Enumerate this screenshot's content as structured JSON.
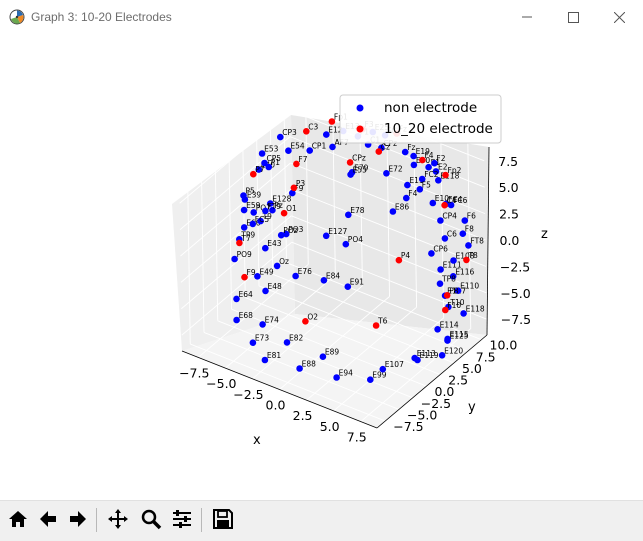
{
  "window": {
    "title": "Graph 3: 10-20 Electrodes",
    "icon": "matplotlib-figure-icon",
    "controls": [
      "minimize-icon",
      "maximize-icon",
      "close-icon"
    ]
  },
  "toolbar": {
    "buttons": [
      {
        "name": "home-button",
        "icon": "home-icon"
      },
      {
        "name": "back-button",
        "icon": "arrow-left-icon"
      },
      {
        "name": "forward-button",
        "icon": "arrow-right-icon"
      },
      {
        "name": "pan-button",
        "icon": "move-arrows-icon"
      },
      {
        "name": "zoom-button",
        "icon": "magnifier-icon"
      },
      {
        "name": "configure-button",
        "icon": "sliders-icon"
      },
      {
        "name": "save-button",
        "icon": "floppy-disk-icon"
      }
    ]
  },
  "chart_data": {
    "type": "scatter",
    "projection": "3d",
    "xlabel": "x",
    "ylabel": "y",
    "zlabel": "z",
    "xticks": [
      "−7.5",
      "−5.0",
      "−2.5",
      "0.0",
      "2.5",
      "5.0",
      "7.5"
    ],
    "yticks": [
      "−7.5",
      "−5.0",
      "−2.5",
      "0.0",
      "2.5",
      "5.0",
      "7.5",
      "10.0"
    ],
    "zticks": [
      "−7.5",
      "−5.0",
      "−2.5",
      "0.0",
      "2.5",
      "5.0",
      "7.5"
    ],
    "xlim": [
      -9,
      9
    ],
    "ylim": [
      -9,
      11
    ],
    "zlim": [
      -9,
      9
    ],
    "grid": true,
    "legend_position": "upper-right",
    "series": [
      {
        "name": "non electrode",
        "color": "#0000ff",
        "points": [
          {
            "label": "E54",
            "x": -4,
            "y": 1,
            "z": 7.6
          },
          {
            "label": "E53",
            "x": -6.4,
            "y": 0.9,
            "z": 6.4
          },
          {
            "label": "E40",
            "x": -7.4,
            "y": 2.2,
            "z": 3.9
          },
          {
            "label": "E39",
            "x": -7.8,
            "y": 0.4,
            "z": 1.7
          },
          {
            "label": "E66",
            "x": -7.6,
            "y": -0.2,
            "z": -0.6
          },
          {
            "label": "E59",
            "x": -8.1,
            "y": 0.8,
            "z": 0.4
          },
          {
            "label": "E49",
            "x": -5.2,
            "y": -2.6,
            "z": -3.2
          },
          {
            "label": "E43",
            "x": -5.2,
            "y": -1.1,
            "z": -1.2
          },
          {
            "label": "E48",
            "x": -4,
            "y": -3.5,
            "z": -3.7
          },
          {
            "label": "E64",
            "x": -6.5,
            "y": -3.9,
            "z": -5.3
          },
          {
            "label": "E68",
            "x": -5.8,
            "y": -5.3,
            "z": -6.4
          },
          {
            "label": "E73",
            "x": -3.8,
            "y": -6.3,
            "z": -7.3
          },
          {
            "label": "E74",
            "x": -3.6,
            "y": -4.9,
            "z": -6.1
          },
          {
            "label": "E81",
            "x": -2.4,
            "y": -6.9,
            "z": -8.1
          },
          {
            "label": "E82",
            "x": -1.2,
            "y": -5.2,
            "z": -6.7
          },
          {
            "label": "E88",
            "x": 0.5,
            "y": -6.3,
            "z": -8
          },
          {
            "label": "E89",
            "x": 1.8,
            "y": -4.6,
            "z": -7.1
          },
          {
            "label": "E94",
            "x": 3.1,
            "y": -4.7,
            "z": -8.5
          },
          {
            "label": "E99",
            "x": 5.7,
            "y": -3.7,
            "z": -8.1
          },
          {
            "label": "E107",
            "x": 6.1,
            "y": -2.2,
            "z": -7.6
          },
          {
            "label": "E113",
            "x": 8,
            "y": -0.1,
            "z": -6.7
          },
          {
            "label": "E119",
            "x": 8,
            "y": 0.4,
            "z": -7.1
          },
          {
            "label": "E120",
            "x": 9.2,
            "y": 2.5,
            "z": -7.1
          },
          {
            "label": "E125",
            "x": 9,
            "y": 3.9,
            "z": -6.4
          },
          {
            "label": "E115",
            "x": 8.8,
            "y": 4.3,
            "z": -6.5
          },
          {
            "label": "E114",
            "x": 8.1,
            "y": 3.9,
            "z": -5.7
          },
          {
            "label": "E118",
            "x": 9.5,
            "y": 5.9,
            "z": -4.5
          },
          {
            "label": "E117",
            "x": 7.5,
            "y": 6.5,
            "z": -3.9
          },
          {
            "label": "E110",
            "x": 8.5,
            "y": 6.9,
            "z": -3.2
          },
          {
            "label": "E111",
            "x": 6.7,
            "y": 7.3,
            "z": -2.1
          },
          {
            "label": "E108",
            "x": 7.4,
            "y": 8.3,
            "z": -1.4
          },
          {
            "label": "E116",
            "x": 7.6,
            "y": 7.8,
            "z": -2.6
          },
          {
            "label": "E118a",
            "x": 6.2,
            "y": 8.1,
            "z": 5.8
          },
          {
            "label": "E86",
            "x": 3.6,
            "y": 4.9,
            "z": 3.2
          },
          {
            "label": "E78",
            "x": 0.8,
            "y": 2.3,
            "z": 2.9
          },
          {
            "label": "E79",
            "x": 0.9,
            "y": 2.9,
            "z": 6.7
          },
          {
            "label": "E72",
            "x": 2.9,
            "y": 5.2,
            "z": 6.4
          },
          {
            "label": "E84",
            "x": 0.4,
            "y": -1.5,
            "z": -1.8
          },
          {
            "label": "E91",
            "x": 2.3,
            "y": -0.9,
            "z": -1.9
          },
          {
            "label": "E76",
            "x": -1.7,
            "y": -2.5,
            "z": -1.8
          },
          {
            "label": "E128",
            "x": -5.5,
            "y": 0.5,
            "z": 2.2
          },
          {
            "label": "E127",
            "x": -0.3,
            "y": 0.4,
            "z": 1.3
          },
          {
            "label": "E55",
            "x": 0.5,
            "y": 3.4,
            "z": 6.1
          },
          {
            "label": "E13",
            "x": -0.9,
            "y": 4.9,
            "z": 9
          },
          {
            "label": "E12",
            "x": -1.7,
            "y": 3.4,
            "z": 9
          },
          {
            "label": "E1",
            "x": 4.7,
            "y": 9.3,
            "z": 5.9
          },
          {
            "label": "E2",
            "x": 5.8,
            "y": 8.5,
            "z": 6.3
          },
          {
            "label": "E25",
            "x": 0.4,
            "y": 7.7,
            "z": 8.2
          },
          {
            "label": "E30",
            "x": 3.6,
            "y": 8.8,
            "z": 5.9
          },
          {
            "label": "E19",
            "x": 4.2,
            "y": 7.6,
            "z": 7.5
          },
          {
            "label": "E11",
            "x": 3.9,
            "y": 7,
            "z": 4.9
          },
          {
            "label": "E10",
            "x": 5.4,
            "y": 8.6,
            "z": 3.1
          },
          {
            "label": "PO3",
            "x": -3.5,
            "y": -0.6,
            "z": 0.6
          },
          {
            "label": "PO4",
            "x": 1.4,
            "y": 0.6,
            "z": 1.1
          },
          {
            "label": "Pz",
            "x": -4.8,
            "y": -0.5,
            "z": 2.3
          },
          {
            "label": "POz",
            "x": -3.5,
            "y": -1.5,
            "z": 0.9
          },
          {
            "label": "CP5",
            "x": -6.5,
            "y": 1.5,
            "z": 5.2
          },
          {
            "label": "CP6",
            "x": 6.6,
            "y": 5.9,
            "z": 0
          },
          {
            "label": "CP4",
            "x": 6.7,
            "y": 7.4,
            "z": 2.5
          },
          {
            "label": "FC4",
            "x": 7.1,
            "y": 7.7,
            "z": 4.1
          },
          {
            "label": "FC6",
            "x": 7.1,
            "y": 8.6,
            "z": 3.6
          },
          {
            "label": "F6",
            "x": 8.4,
            "y": 8.5,
            "z": 2.7
          },
          {
            "label": "F8",
            "x": 8.3,
            "y": 8.3,
            "z": 1.5
          },
          {
            "label": "FT8",
            "x": 8.8,
            "y": 8.3,
            "z": 0.6
          },
          {
            "label": "C6",
            "x": 7.2,
            "y": 7.2,
            "z": 1.1
          },
          {
            "label": "TP8",
            "x": 7.4,
            "y": 5.8,
            "z": -2.5
          },
          {
            "label": "T10",
            "x": 8.3,
            "y": 5.5,
            "z": -4.2
          },
          {
            "label": "F2",
            "x": 5.4,
            "y": 9,
            "z": 6.7
          },
          {
            "label": "Fz",
            "x": 2.5,
            "y": 9.4,
            "z": 6.4
          },
          {
            "label": "FC2",
            "x": 4.3,
            "y": 8.9,
            "z": 4.8
          },
          {
            "label": "CPz",
            "x": 1.8,
            "y": 6.5,
            "z": 7.8
          },
          {
            "label": "C1",
            "x": 1.6,
            "y": 4.5,
            "z": 8.9
          },
          {
            "label": "FC1",
            "x": 1.9,
            "y": 7,
            "z": 8.8
          },
          {
            "label": "F1",
            "x": 0.1,
            "y": 5.6,
            "z": 8.6
          },
          {
            "label": "AF7",
            "x": -1.5,
            "y": 4.1,
            "z": 7.6
          },
          {
            "label": "CP1",
            "x": -2.9,
            "y": 2.7,
            "z": 7.3
          },
          {
            "label": "CP3",
            "x": -5.2,
            "y": 1.9,
            "z": 8
          },
          {
            "label": "P1",
            "x": -5.7,
            "y": 0.7,
            "z": 5.5
          },
          {
            "label": "P5",
            "x": -7.3,
            "y": -0.8,
            "z": 2.8
          },
          {
            "label": "PO7",
            "x": -7,
            "y": 0.4,
            "z": 0.8
          },
          {
            "label": "Oz",
            "x": -3.3,
            "y": -2.7,
            "z": -1.4
          },
          {
            "label": "T9",
            "x": -5.6,
            "y": -1.1,
            "z": 1.2
          },
          {
            "label": "FT9",
            "x": -5.5,
            "y": -0.4,
            "z": 1.9
          },
          {
            "label": "F9",
            "x": -3.7,
            "y": 1,
            "z": 3.7
          },
          {
            "label": "TP9",
            "x": -7.5,
            "y": -1.3,
            "z": -1.2
          },
          {
            "label": "PO9",
            "x": -7.6,
            "y": -2,
            "z": -2.8
          },
          {
            "label": "F4",
            "x": 4.4,
            "y": 5.8,
            "z": 4.4
          },
          {
            "label": "FC5",
            "x": -7,
            "y": 0.2,
            "z": -0.2
          },
          {
            "label": "F5",
            "x": 3.8,
            "y": 9.4,
            "z": 3.4
          }
        ]
      },
      {
        "name": "10_20 electrode",
        "color": "#ff0000",
        "points": [
          {
            "label": "C3",
            "x": -3.6,
            "y": 3.5,
            "z": 8.5
          },
          {
            "label": "Fp1",
            "x": -2.4,
            "y": 5.8,
            "z": 8.9
          },
          {
            "label": "F3",
            "x": -0.3,
            "y": 7.2,
            "z": 8.4
          },
          {
            "label": "CPz",
            "x": -0.2,
            "y": 4.7,
            "z": 6.4
          },
          {
            "label": "Cz",
            "x": 1.6,
            "y": 6.4,
            "z": 7.4
          },
          {
            "label": "Fz",
            "x": 2.1,
            "y": 8.7,
            "z": 8.3
          },
          {
            "label": "F4",
            "x": 4.5,
            "y": 8.6,
            "z": 6.8
          },
          {
            "label": "Fp2",
            "x": 6.1,
            "y": 9.6,
            "z": 5.6
          },
          {
            "label": "C4",
            "x": 6.7,
            "y": 8.2,
            "z": 3.6
          },
          {
            "label": "T8",
            "x": 8.8,
            "y": 7.9,
            "z": -0.6
          },
          {
            "label": "P8",
            "x": 8,
            "y": 5.9,
            "z": -3.4
          },
          {
            "label": "F10",
            "x": 7.7,
            "y": 6.1,
            "z": -5
          },
          {
            "label": "P4",
            "x": 4.5,
            "y": 4.1,
            "z": -0.7
          },
          {
            "label": "P3",
            "x": -3.6,
            "y": 1.1,
            "z": 4.2
          },
          {
            "label": "F7",
            "x": -4.1,
            "y": 2.6,
            "z": 5.6
          },
          {
            "label": "O1",
            "x": -3.2,
            "y": -1.5,
            "z": 3.1
          },
          {
            "label": "P7",
            "x": -7.4,
            "y": 1.2,
            "z": 3.9
          },
          {
            "label": "T7",
            "x": -7.7,
            "y": -0.9,
            "z": -1.8
          },
          {
            "label": "O2",
            "x": -0.5,
            "y": -3.2,
            "z": -5.3
          },
          {
            "label": "T6",
            "x": 4.1,
            "y": 0.6,
            "z": -5.5
          },
          {
            "label": "F9a",
            "x": -6.5,
            "y": -2.4,
            "z": -3.9
          }
        ]
      }
    ]
  }
}
